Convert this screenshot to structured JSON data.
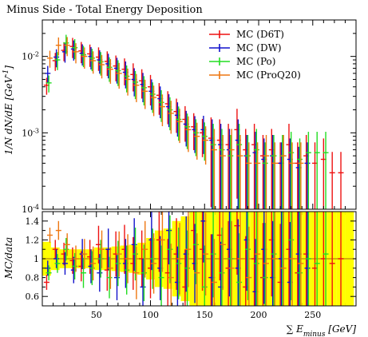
{
  "chart_data": [
    {
      "type": "line",
      "panel": "main",
      "title": "Minus Side - Total Energy Deposition",
      "ylabel": "1/N dN/dE [GeV^-1]",
      "xlabel": "",
      "xlim": [
        0,
        290
      ],
      "ylim": [
        0.0001,
        0.03
      ],
      "y_scale": "log",
      "y_ticks": [
        {
          "v": 0.01,
          "label": "10",
          "exp": "-2"
        },
        {
          "v": 0.001,
          "label": "10",
          "exp": "-3"
        },
        {
          "v": 0.0001,
          "label": "10",
          "exp": "-4"
        }
      ],
      "legend": "top-right",
      "series": [
        {
          "name": "MC (D6T)",
          "color": "#ee1111",
          "x": [
            4,
            12,
            20,
            28,
            36,
            44,
            52,
            60,
            68,
            76,
            84,
            92,
            100,
            108,
            116,
            124,
            132,
            140,
            148,
            156,
            164,
            172,
            180,
            188,
            196,
            204,
            212,
            220,
            228,
            236,
            244,
            252,
            260,
            268,
            276
          ],
          "y": [
            0.0042,
            0.0088,
            0.012,
            0.0135,
            0.0118,
            0.0108,
            0.0098,
            0.0086,
            0.0075,
            0.0068,
            0.0058,
            0.0048,
            0.004,
            0.0031,
            0.0024,
            0.0019,
            0.0015,
            0.0012,
            0.001,
            0.00085,
            0.0008,
            0.0007,
            0.0011,
            0.0006,
            0.0007,
            0.0005,
            0.0006,
            0.0004,
            0.0007,
            0.0004,
            0.0005,
            0.0004,
            0.00045,
            0.0003,
            0.0003
          ],
          "err_rel": 0.25
        },
        {
          "name": "MC (DW)",
          "color": "#1111cc",
          "x": [
            5,
            13,
            21,
            29,
            37,
            45,
            53,
            61,
            69,
            77,
            85,
            93,
            101,
            109,
            117,
            125,
            133,
            141,
            149,
            157,
            165,
            173,
            181,
            189,
            197,
            205,
            213,
            221,
            229,
            237,
            245
          ],
          "y": [
            0.006,
            0.0098,
            0.0115,
            0.0125,
            0.011,
            0.01,
            0.009,
            0.008,
            0.007,
            0.0062,
            0.005,
            0.0043,
            0.0035,
            0.0028,
            0.0022,
            0.0017,
            0.0013,
            0.0011,
            0.0011,
            0.0008,
            0.0007,
            0.0006,
            0.0008,
            0.0005,
            0.00055,
            0.00045,
            0.0005,
            0.0004,
            0.00045,
            0.00035,
            0.0004
          ],
          "err_rel": 0.25
        },
        {
          "name": "MC (Po)",
          "color": "#22dd22",
          "x": [
            6,
            14,
            22,
            30,
            38,
            46,
            54,
            62,
            70,
            78,
            86,
            94,
            102,
            110,
            118,
            126,
            134,
            142,
            150,
            158,
            166,
            174,
            182,
            190,
            198,
            206,
            214,
            222,
            230,
            238,
            246,
            254,
            262
          ],
          "y": [
            0.0045,
            0.009,
            0.015,
            0.013,
            0.0105,
            0.0095,
            0.0085,
            0.0072,
            0.0065,
            0.0055,
            0.0046,
            0.0039,
            0.0032,
            0.0025,
            0.002,
            0.0015,
            0.0012,
            0.001,
            0.0009,
            0.0007,
            0.0006,
            0.0005,
            0.0007,
            0.0005,
            0.0006,
            0.0004,
            0.0005,
            0.0005,
            0.00055,
            0.00045,
            0.00055,
            0.00055,
            0.00055
          ],
          "err_rel": 0.25
        },
        {
          "name": "MC (ProQ20)",
          "color": "#ee7711",
          "x": [
            7,
            15,
            23,
            31,
            39,
            47,
            55,
            63,
            71,
            79,
            87,
            95,
            103,
            111,
            119,
            127,
            135,
            143,
            151,
            159,
            167,
            175,
            183,
            191,
            199,
            207,
            215,
            223,
            231,
            239
          ],
          "y": [
            0.0095,
            0.014,
            0.014,
            0.0115,
            0.01,
            0.0088,
            0.0078,
            0.0068,
            0.006,
            0.005,
            0.0042,
            0.0035,
            0.0029,
            0.0022,
            0.0018,
            0.0014,
            0.0011,
            0.0009,
            0.0008,
            0.0006,
            0.0005,
            0.0006,
            0.0005,
            0.0004,
            0.0004,
            0.0005,
            0.0004,
            0.0005,
            0.0004,
            0.0004
          ],
          "err_rel": 0.25
        }
      ]
    },
    {
      "type": "line",
      "panel": "ratio",
      "title": "",
      "ylabel": "MC/data",
      "xlabel": "∑ E_minus [GeV]",
      "xlim": [
        0,
        290
      ],
      "ylim": [
        0.5,
        1.5
      ],
      "y_ticks": [
        0.6,
        0.8,
        1,
        1.2,
        1.4
      ],
      "y_tick_labels": [
        "0.6",
        "0.8",
        "1",
        "1.2",
        "1.4"
      ],
      "x_ticks": [
        50,
        100,
        150,
        200,
        250
      ],
      "x_tick_labels": [
        "50",
        "100",
        "150",
        "200",
        "250"
      ],
      "reference_line": 1,
      "data_band_color": "#ffff00",
      "data_band": {
        "x": [
          4,
          12,
          20,
          28,
          36,
          44,
          52,
          60,
          68,
          76,
          84,
          92,
          100,
          108,
          116,
          124,
          132,
          140,
          148,
          156,
          164,
          172,
          180,
          188,
          196,
          204,
          212,
          220,
          228,
          236,
          244,
          252,
          260,
          268,
          276,
          284
        ],
        "half_width": [
          0.18,
          0.12,
          0.1,
          0.1,
          0.1,
          0.1,
          0.12,
          0.12,
          0.13,
          0.14,
          0.15,
          0.17,
          0.22,
          0.3,
          0.32,
          0.4,
          0.45,
          0.5,
          0.5,
          0.5,
          0.5,
          0.5,
          0.5,
          0.5,
          0.5,
          0.5,
          0.5,
          0.5,
          0.5,
          0.5,
          0.5,
          0.5,
          0.5,
          0.5,
          0.5,
          0.5
        ]
      },
      "series": [
        {
          "name": "MC (D6T)",
          "color": "#ee1111",
          "x": [
            4,
            12,
            20,
            28,
            36,
            44,
            52,
            60,
            68,
            76,
            84,
            92,
            100,
            108,
            116,
            124,
            132,
            140,
            148,
            156,
            164,
            172,
            180,
            188,
            196,
            204,
            212,
            220,
            228,
            236,
            244,
            252,
            260,
            268,
            276
          ],
          "y": [
            0.75,
            1.1,
            1.05,
            0.98,
            0.92,
            1.02,
            1.15,
            0.88,
            1.05,
            1.1,
            0.95,
            1.0,
            0.9,
            1.2,
            0.85,
            1.05,
            0.7,
            1.3,
            1.1,
            0.8,
            1.25,
            0.9,
            1.35,
            0.7,
            1.0,
            0.8,
            1.2,
            0.75,
            1.1,
            0.85,
            1.05,
            0.9,
            1.0,
            0.95,
            1.0
          ]
        },
        {
          "name": "MC (DW)",
          "color": "#1111cc",
          "x": [
            5,
            13,
            21,
            29,
            37,
            45,
            53,
            61,
            69,
            77,
            85,
            93,
            101,
            109,
            117,
            125,
            133,
            141,
            149,
            157,
            165,
            173,
            181,
            189,
            197,
            205,
            213,
            221,
            229,
            237,
            245
          ],
          "y": [
            0.9,
            1.0,
            0.95,
            0.88,
            1.05,
            0.92,
            0.85,
            1.1,
            0.8,
            0.95,
            1.15,
            0.7,
            1.2,
            0.9,
            1.3,
            0.75,
            1.05,
            0.95,
            1.4,
            0.8,
            0.7,
            1.1,
            0.9,
            1.2,
            0.65,
            1.1,
            0.8,
            1.0,
            0.75,
            1.05,
            0.9
          ]
        },
        {
          "name": "MC (Po)",
          "color": "#22dd22",
          "x": [
            6,
            14,
            22,
            30,
            38,
            46,
            54,
            62,
            70,
            78,
            86,
            94,
            102,
            110,
            118,
            126,
            134,
            142,
            150,
            158,
            166,
            174,
            182,
            190,
            198,
            206,
            214,
            222,
            230,
            238,
            246,
            254,
            262
          ],
          "y": [
            0.85,
            0.95,
            1.1,
            0.92,
            0.85,
            0.9,
            1.0,
            0.8,
            0.95,
            0.88,
            1.05,
            0.85,
            1.0,
            0.8,
            1.1,
            0.95,
            0.9,
            1.15,
            0.7,
            1.05,
            0.85,
            1.0,
            0.75,
            1.1,
            0.95,
            0.8,
            1.05,
            0.9,
            1.2,
            0.85,
            1.0,
            0.95,
            1.05
          ]
        },
        {
          "name": "MC (ProQ20)",
          "color": "#ee7711",
          "x": [
            7,
            15,
            23,
            31,
            39,
            47,
            55,
            63,
            71,
            79,
            87,
            95,
            103,
            111,
            119,
            127,
            135,
            143,
            151,
            159,
            167,
            175,
            183,
            191,
            199,
            207,
            215,
            223,
            231,
            239
          ],
          "y": [
            1.25,
            1.3,
            1.15,
            1.0,
            1.05,
            0.95,
            1.1,
            0.9,
            1.05,
            1.0,
            0.85,
            1.1,
            0.95,
            1.2,
            0.8,
            1.0,
            1.1,
            0.85,
            1.05,
            0.75,
            1.15,
            0.9,
            1.0,
            0.8,
            1.05,
            0.95,
            1.0,
            0.9,
            1.0,
            0.95
          ]
        }
      ]
    }
  ]
}
